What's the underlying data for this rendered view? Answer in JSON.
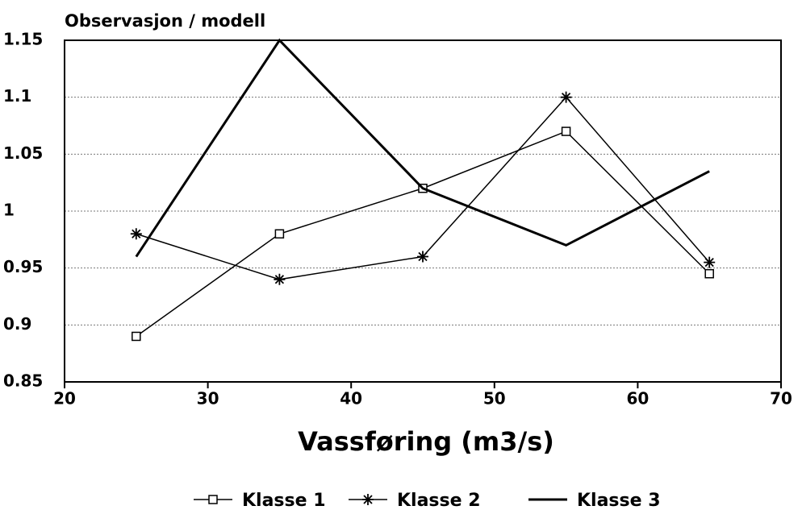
{
  "chart_data": {
    "type": "line",
    "ylabel": "Observasjon / modell",
    "xlabel": "Vassføring (m3/s)",
    "x": [
      25,
      35,
      45,
      55,
      65
    ],
    "series": [
      {
        "name": "Klasse 1",
        "color": "#000000",
        "marker": "square",
        "values": [
          0.89,
          0.98,
          1.02,
          1.07,
          0.945
        ]
      },
      {
        "name": "Klasse 2",
        "color": "#000000",
        "marker": "asterisk",
        "values": [
          0.98,
          0.94,
          0.96,
          1.1,
          0.955
        ]
      },
      {
        "name": "Klasse 3",
        "color": "#000000",
        "marker": "none",
        "values": [
          0.96,
          1.15,
          1.02,
          0.97,
          1.035
        ]
      }
    ],
    "xlim": [
      20,
      70
    ],
    "xticks": [
      20,
      30,
      40,
      50,
      60,
      70
    ],
    "ylim": [
      0.85,
      1.15
    ],
    "yticks": [
      0.85,
      0.9,
      0.95,
      1,
      1.05,
      1.1,
      1.15
    ],
    "grid": true,
    "legend": "bottom"
  }
}
